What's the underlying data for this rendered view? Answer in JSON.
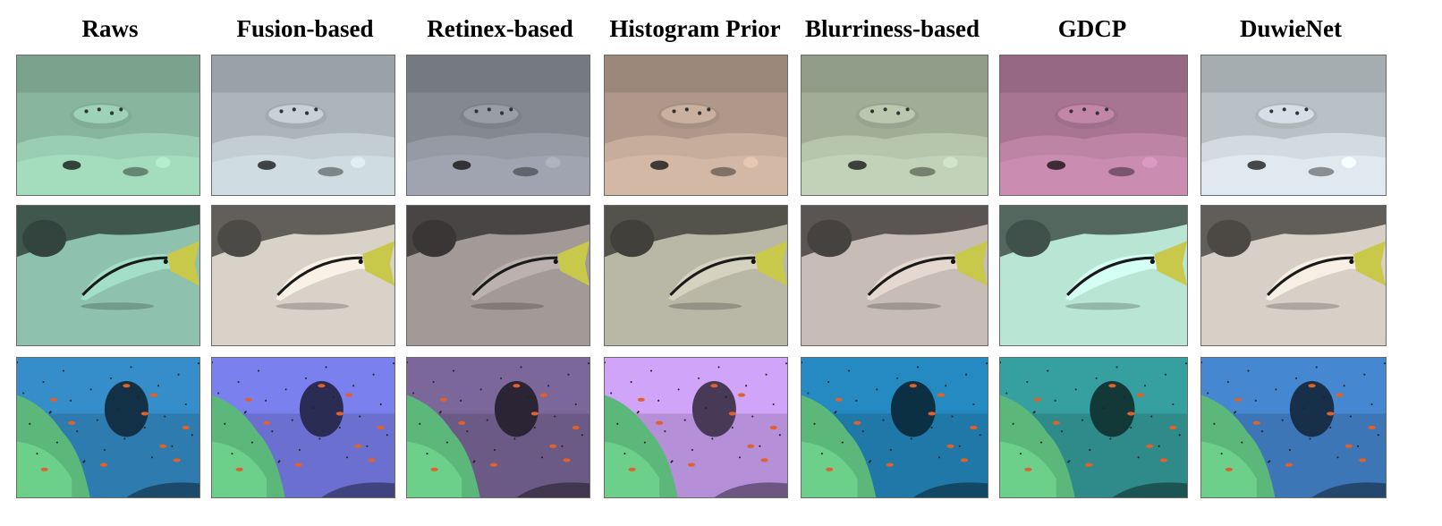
{
  "columns": [
    {
      "title": "Raws"
    },
    {
      "title": "Fusion-based"
    },
    {
      "title": "Retinex-based"
    },
    {
      "title": "Histogram Prior"
    },
    {
      "title": "Blurriness-based"
    },
    {
      "title": "GDCP"
    },
    {
      "title": "DuwieNet"
    }
  ],
  "rows": [
    {
      "scene": "pufferfish-on-rocky-seabed"
    },
    {
      "scene": "goatfish-on-sand"
    },
    {
      "scene": "coral-reef-with-small-fish"
    }
  ],
  "tints": {
    "row1": [
      "#8fbfa5",
      "#b4bfc4",
      "#8a8f99",
      "#b8a090",
      "#a8b7a0",
      "#b07a9a",
      "#c2cbd0"
    ],
    "row2": [
      "#8ec2ae",
      "#d9d2c8",
      "#a39a98",
      "#b9b7a6",
      "#c7bcb6",
      "#b8e5d4",
      "#d8d0c6"
    ],
    "row3": [
      "#2e7bb0",
      "#6b6fd0",
      "#6b5a85",
      "#b58fd8",
      "#1f78a8",
      "#2e8b8a",
      "#3c76b6"
    ]
  }
}
